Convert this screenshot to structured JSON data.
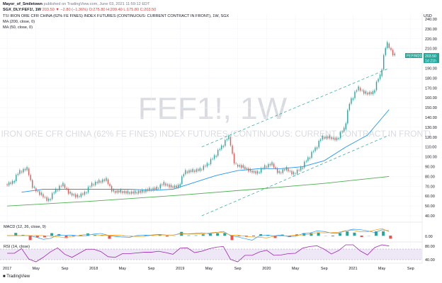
{
  "header": {
    "author": "Mayor_of_Smiletown",
    "published": "published on TradingView.com, June 03, 2021 11:59:12 EDT",
    "ticker": "SGX_DLY:FEF1!, 1W",
    "quote": "203.50 ▼ −2.80 (−1.36%) O:275.80 H:209.40 L:175.80 C:203.50",
    "title": "TSI IRON ORE CFR CHINA (62% FE FINES) INDEX FUTURES (CONTINUOUS: CURRENT CONTRACT IN FRONT), 1W, SGX",
    "ma200": "MA (200, close, 0)",
    "ma50": "MA (50, close, 0)"
  },
  "watermark": {
    "symbol": "FEF1!, 1W",
    "name": "TSI IRON ORE CFR CHINA (62% FE FINES) INDEX FUTURES (CONTINUOUS: CURRENT CONTRACT IN FRONT)"
  },
  "price_axis": {
    "currency": "USD",
    "last_tag": "FEF/M2021",
    "last_value": "203.50",
    "countdown": "1d 21h"
  },
  "macd_label": "MACD (12, 26, close, 9)",
  "rsi_label": "RSI (14, close)",
  "footer": "TradingView",
  "colors": {
    "up": "#26a69a",
    "down": "#ef5350",
    "ma50": "#2196f3",
    "ma200": "#4caf50",
    "channel": "#26a69a",
    "rsi": "#9c27b0",
    "rsi_band": "#ede7f6",
    "macd": "#2196f3",
    "signal": "#ff9800",
    "tag": "#26a69a"
  },
  "chart_data": {
    "type": "candlestick",
    "time_labels": [
      "2017",
      "May",
      "Sep",
      "2018",
      "May",
      "Sep",
      "2019",
      "May",
      "Sep",
      "2020",
      "May",
      "Sep",
      "2021",
      "May",
      "Sep"
    ],
    "y_ticks": [
      240,
      230,
      220,
      210,
      200,
      190,
      180,
      170,
      160,
      150,
      140,
      130,
      120,
      110,
      100,
      90,
      80,
      70,
      60,
      50,
      40
    ],
    "close_series": [
      {
        "t": "2017-01",
        "v": 74
      },
      {
        "t": "2017-02",
        "v": 85
      },
      {
        "t": "2017-03",
        "v": 88
      },
      {
        "t": "2017-04",
        "v": 68
      },
      {
        "t": "2017-05",
        "v": 62
      },
      {
        "t": "2017-06",
        "v": 56
      },
      {
        "t": "2017-07",
        "v": 66
      },
      {
        "t": "2017-08",
        "v": 72
      },
      {
        "t": "2017-09",
        "v": 63
      },
      {
        "t": "2017-10",
        "v": 60
      },
      {
        "t": "2017-11",
        "v": 63
      },
      {
        "t": "2017-12",
        "v": 72
      },
      {
        "t": "2018-01",
        "v": 75
      },
      {
        "t": "2018-02",
        "v": 77
      },
      {
        "t": "2018-03",
        "v": 65
      },
      {
        "t": "2018-04",
        "v": 65
      },
      {
        "t": "2018-05",
        "v": 64
      },
      {
        "t": "2018-06",
        "v": 64
      },
      {
        "t": "2018-07",
        "v": 65
      },
      {
        "t": "2018-08",
        "v": 67
      },
      {
        "t": "2018-09",
        "v": 68
      },
      {
        "t": "2018-10",
        "v": 73
      },
      {
        "t": "2018-11",
        "v": 70
      },
      {
        "t": "2018-12",
        "v": 70
      },
      {
        "t": "2019-01",
        "v": 85
      },
      {
        "t": "2019-02",
        "v": 86
      },
      {
        "t": "2019-03",
        "v": 87
      },
      {
        "t": "2019-04",
        "v": 92
      },
      {
        "t": "2019-05",
        "v": 100
      },
      {
        "t": "2019-06",
        "v": 110
      },
      {
        "t": "2019-07",
        "v": 120
      },
      {
        "t": "2019-08",
        "v": 92
      },
      {
        "t": "2019-09",
        "v": 90
      },
      {
        "t": "2019-10",
        "v": 86
      },
      {
        "t": "2019-11",
        "v": 84
      },
      {
        "t": "2019-12",
        "v": 90
      },
      {
        "t": "2020-01",
        "v": 93
      },
      {
        "t": "2020-02",
        "v": 84
      },
      {
        "t": "2020-03",
        "v": 88
      },
      {
        "t": "2020-04",
        "v": 83
      },
      {
        "t": "2020-05",
        "v": 88
      },
      {
        "t": "2020-06",
        "v": 98
      },
      {
        "t": "2020-07",
        "v": 108
      },
      {
        "t": "2020-08",
        "v": 120
      },
      {
        "t": "2020-09",
        "v": 120
      },
      {
        "t": "2020-10",
        "v": 118
      },
      {
        "t": "2020-11",
        "v": 128
      },
      {
        "t": "2020-12",
        "v": 158
      },
      {
        "t": "2021-01",
        "v": 170
      },
      {
        "t": "2021-02",
        "v": 165
      },
      {
        "t": "2021-03",
        "v": 165
      },
      {
        "t": "2021-04",
        "v": 182
      },
      {
        "t": "2021-05",
        "v": 215
      },
      {
        "t": "2021-06",
        "v": 203.5
      }
    ],
    "ma50": [
      {
        "t": "2017-03",
        "v": 64
      },
      {
        "t": "2017-06",
        "v": 67
      },
      {
        "t": "2017-09",
        "v": 67
      },
      {
        "t": "2017-12",
        "v": 67
      },
      {
        "t": "2018-03",
        "v": 67
      },
      {
        "t": "2018-06",
        "v": 67
      },
      {
        "t": "2018-09",
        "v": 66
      },
      {
        "t": "2018-12",
        "v": 67
      },
      {
        "t": "2019-03",
        "v": 74
      },
      {
        "t": "2019-06",
        "v": 81
      },
      {
        "t": "2019-09",
        "v": 86
      },
      {
        "t": "2019-12",
        "v": 88
      },
      {
        "t": "2020-03",
        "v": 88
      },
      {
        "t": "2020-06",
        "v": 90
      },
      {
        "t": "2020-09",
        "v": 96
      },
      {
        "t": "2020-12",
        "v": 110
      },
      {
        "t": "2021-03",
        "v": 122
      },
      {
        "t": "2021-06",
        "v": 148
      }
    ],
    "ma200": [
      {
        "t": "2017-01",
        "v": 50
      },
      {
        "t": "2018-01",
        "v": 55
      },
      {
        "t": "2019-01",
        "v": 61
      },
      {
        "t": "2020-01",
        "v": 68
      },
      {
        "t": "2020-09",
        "v": 73
      },
      {
        "t": "2021-06",
        "v": 80
      }
    ],
    "channel": {
      "upper": [
        {
          "t": "2019-04",
          "v": 110
        },
        {
          "t": "2021-06",
          "v": 190
        }
      ],
      "lower": [
        {
          "t": "2019-04",
          "v": 40
        },
        {
          "t": "2021-06",
          "v": 122
        }
      ]
    },
    "ylim": [
      35,
      245
    ]
  }
}
